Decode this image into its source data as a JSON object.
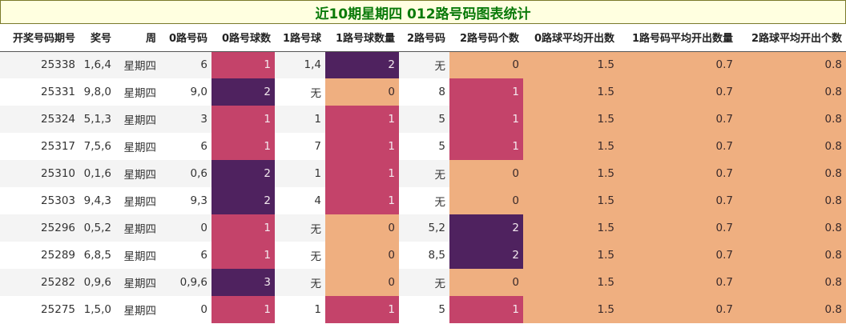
{
  "title": "近10期星期四 012路号码图表统计",
  "chart_data": {
    "type": "table",
    "columns": [
      "开奖号码期号",
      "奖号",
      "周",
      "0路号码",
      "0路号球数",
      "1路号球",
      "1路号球数量",
      "2路号码",
      "2路号码个数",
      "0路球平均开出数",
      "1路号码平均开出数量",
      "2路球平均开出个数"
    ],
    "rows": [
      [
        "25338",
        "1,6,4",
        "星期四",
        "6",
        1,
        "1,4",
        2,
        "无",
        0,
        "1.5",
        "0.7",
        "0.8"
      ],
      [
        "25331",
        "9,8,0",
        "星期四",
        "9,0",
        2,
        "无",
        0,
        "8",
        1,
        "1.5",
        "0.7",
        "0.8"
      ],
      [
        "25324",
        "5,1,3",
        "星期四",
        "3",
        1,
        "1",
        1,
        "5",
        1,
        "1.5",
        "0.7",
        "0.8"
      ],
      [
        "25317",
        "7,5,6",
        "星期四",
        "6",
        1,
        "7",
        1,
        "5",
        1,
        "1.5",
        "0.7",
        "0.8"
      ],
      [
        "25310",
        "0,1,6",
        "星期四",
        "0,6",
        2,
        "1",
        1,
        "无",
        0,
        "1.5",
        "0.7",
        "0.8"
      ],
      [
        "25303",
        "9,4,3",
        "星期四",
        "9,3",
        2,
        "4",
        1,
        "无",
        0,
        "1.5",
        "0.7",
        "0.8"
      ],
      [
        "25296",
        "0,5,2",
        "星期四",
        "0",
        1,
        "无",
        0,
        "5,2",
        2,
        "1.5",
        "0.7",
        "0.8"
      ],
      [
        "25289",
        "6,8,5",
        "星期四",
        "6",
        1,
        "无",
        0,
        "8,5",
        2,
        "1.5",
        "0.7",
        "0.8"
      ],
      [
        "25282",
        "0,9,6",
        "星期四",
        "0,9,6",
        3,
        "无",
        0,
        "无",
        0,
        "1.5",
        "0.7",
        "0.8"
      ],
      [
        "25275",
        "1,5,0",
        "星期四",
        "0",
        1,
        "1",
        1,
        "5",
        1,
        "1.5",
        "0.7",
        "0.8"
      ]
    ],
    "heatmap_columns": [
      4,
      6,
      8,
      9,
      10,
      11
    ],
    "value_colors": {
      "0": "#efaf80",
      "1": "#c4436a",
      "2": "#4f225f",
      "3": "#4f225f",
      "avg": "#efaf80"
    }
  }
}
